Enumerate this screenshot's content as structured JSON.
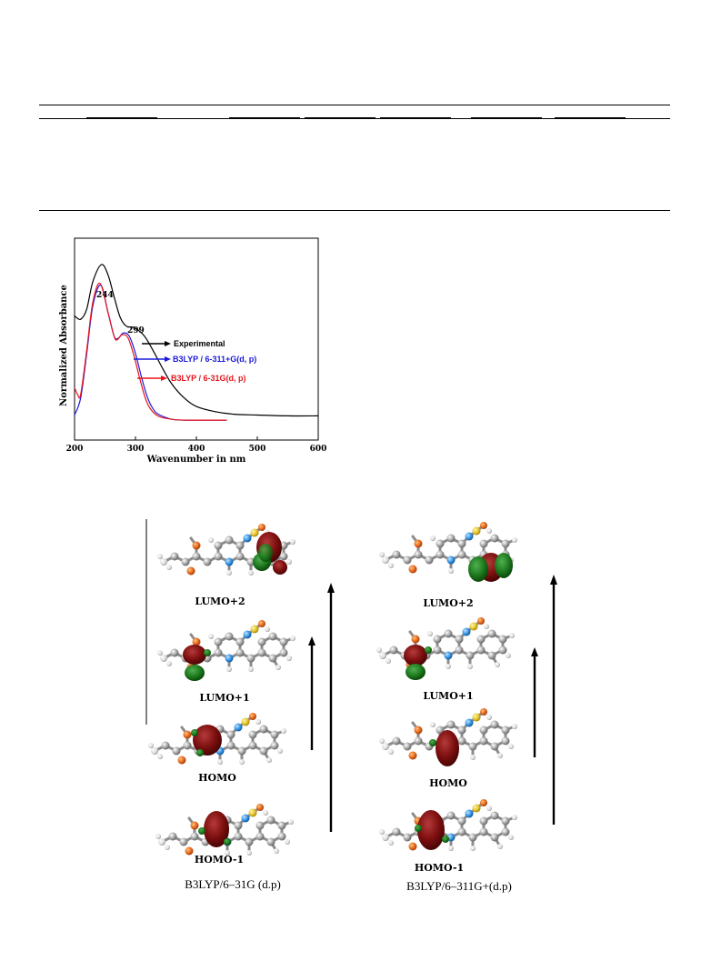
{
  "chart_data": {
    "type": "line",
    "xlabel": "Wavenumber in nm",
    "ylabel": "Normalized Absorbance",
    "xlim": [
      200,
      600
    ],
    "ylim": [
      0,
      1.1
    ],
    "xticks": [
      200,
      300,
      400,
      500,
      600
    ],
    "grid": false,
    "legend": "annotations with arrows",
    "peak_labels": [
      "244",
      "299"
    ],
    "series": [
      {
        "name": "Experimental",
        "color": "#000000",
        "x": [
          200,
          210,
          220,
          230,
          244,
          255,
          265,
          275,
          285,
          299,
          315,
          330,
          345,
          360,
          380,
          400,
          430,
          460,
          500,
          550,
          600
        ],
        "y": [
          0.62,
          0.6,
          0.66,
          0.82,
          0.92,
          0.86,
          0.73,
          0.61,
          0.56,
          0.55,
          0.5,
          0.41,
          0.31,
          0.22,
          0.14,
          0.09,
          0.06,
          0.045,
          0.04,
          0.035,
          0.035
        ]
      },
      {
        "name": "B3LYP / 6-311+G(d, p)",
        "color": "#1a1adb",
        "x": [
          200,
          210,
          220,
          230,
          243,
          255,
          265,
          272,
          280,
          290,
          300,
          310,
          320,
          330,
          340,
          360,
          380,
          400,
          450
        ],
        "y": [
          0.04,
          0.14,
          0.4,
          0.68,
          0.8,
          0.64,
          0.5,
          0.49,
          0.52,
          0.5,
          0.4,
          0.26,
          0.14,
          0.07,
          0.04,
          0.015,
          0.01,
          0.01,
          0.01
        ]
      },
      {
        "name": "B3LYP / 6-31G(d, p)",
        "color": "#e8141b",
        "x": [
          200,
          205,
          210,
          220,
          230,
          242,
          255,
          265,
          270,
          278,
          288,
          298,
          308,
          318,
          328,
          340,
          360,
          380,
          400,
          450
        ],
        "y": [
          0.2,
          0.16,
          0.16,
          0.42,
          0.7,
          0.81,
          0.64,
          0.5,
          0.48,
          0.51,
          0.49,
          0.38,
          0.24,
          0.12,
          0.06,
          0.03,
          0.015,
          0.01,
          0.01,
          0.01
        ]
      }
    ]
  },
  "orbitals": {
    "left": {
      "labels": [
        "LUMO+2",
        "LUMO+1",
        "HOMO",
        "HOMO-1"
      ],
      "caption": "B3LYP/6–31G (d.p)"
    },
    "right": {
      "labels": [
        "LUMO+2",
        "LUMO+1",
        "HOMO",
        "HOMO-1"
      ],
      "caption": "B3LYP/6–311G+(d.p)"
    }
  }
}
